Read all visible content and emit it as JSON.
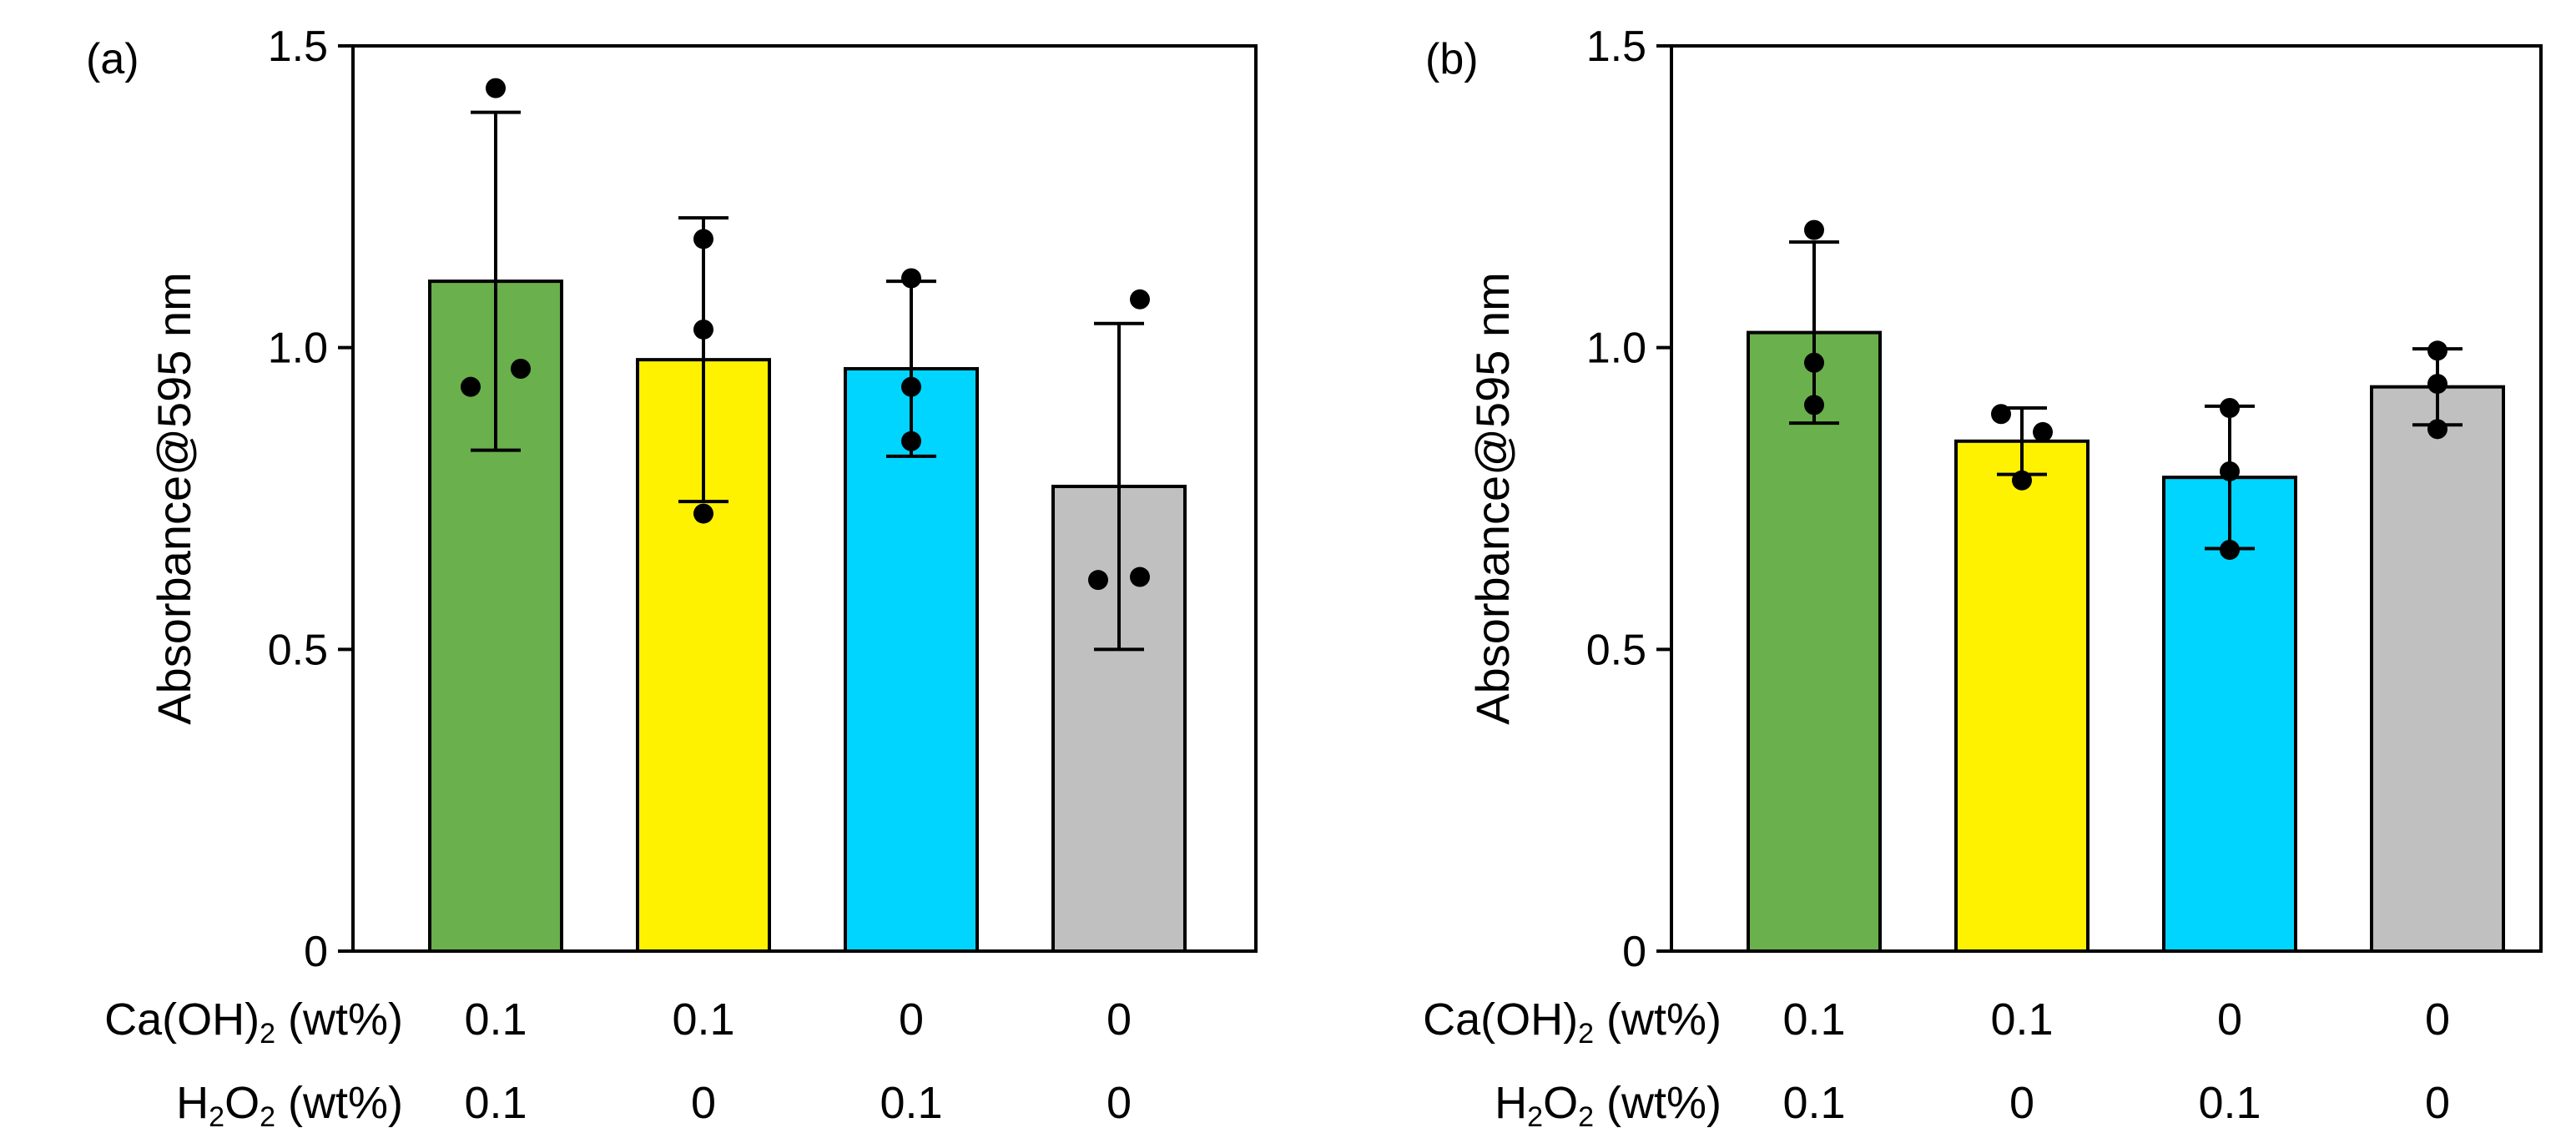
{
  "chart_data": [
    {
      "type": "bar",
      "panel_label": "(a)",
      "ylabel": "Absorbance@595 nm",
      "ylim": [
        0,
        1.5
      ],
      "yticks": [
        0,
        0.5,
        1.0,
        1.5
      ],
      "ytick_labels": [
        "0",
        "0.5",
        "1.0",
        "1.5"
      ],
      "categories": [
        "Ca(OH)2 0.1 / H2O2 0.1",
        "Ca(OH)2 0.1 / H2O2 0",
        "Ca(OH)2 0 / H2O2 0.1",
        "Ca(OH)2 0 / H2O2 0"
      ],
      "values": [
        1.11,
        0.98,
        0.965,
        0.77
      ],
      "error": [
        0.28,
        0.235,
        0.145,
        0.27
      ],
      "points": [
        [
          1.43,
          0.935,
          0.965
        ],
        [
          1.18,
          1.03,
          0.725
        ],
        [
          1.115,
          0.935,
          0.845
        ],
        [
          1.08,
          0.615,
          0.62
        ]
      ],
      "colors": [
        "#6ab04c",
        "#fff200",
        "#00d5ff",
        "#c0c0c0"
      ],
      "legend": "none",
      "grid": false
    },
    {
      "type": "bar",
      "panel_label": "(b)",
      "ylabel": "Absorbance@595 nm",
      "ylim": [
        0,
        1.5
      ],
      "yticks": [
        0,
        0.5,
        1.0,
        1.5
      ],
      "ytick_labels": [
        "0",
        "0.5",
        "1.0",
        "1.5"
      ],
      "categories": [
        "Ca(OH)2 0.1 / H2O2 0.1",
        "Ca(OH)2 0.1 / H2O2 0",
        "Ca(OH)2 0 / H2O2 0.1",
        "Ca(OH)2 0 / H2O2 0"
      ],
      "values": [
        1.025,
        0.845,
        0.785,
        0.935
      ],
      "error": [
        0.15,
        0.055,
        0.118,
        0.063
      ],
      "points": [
        [
          1.195,
          0.975,
          0.905
        ],
        [
          0.89,
          0.86,
          0.78
        ],
        [
          0.9,
          0.795,
          0.665
        ],
        [
          0.995,
          0.94,
          0.865
        ]
      ],
      "colors": [
        "#6ab04c",
        "#fff200",
        "#00d5ff",
        "#c0c0c0"
      ],
      "legend": "none",
      "grid": false
    }
  ],
  "conditions": {
    "caoh2": {
      "label_main": "Ca(OH)",
      "label_sub": "2",
      "label_rest": " (wt%)",
      "values": [
        "0.1",
        "0.1",
        "0",
        "0"
      ]
    },
    "h2o2": {
      "label_main": "H",
      "label_sub1": "2",
      "label_mid": "O",
      "label_sub2": "2",
      "label_rest": " (wt%)",
      "values": [
        "0.1",
        "0",
        "0.1",
        "0"
      ]
    }
  }
}
